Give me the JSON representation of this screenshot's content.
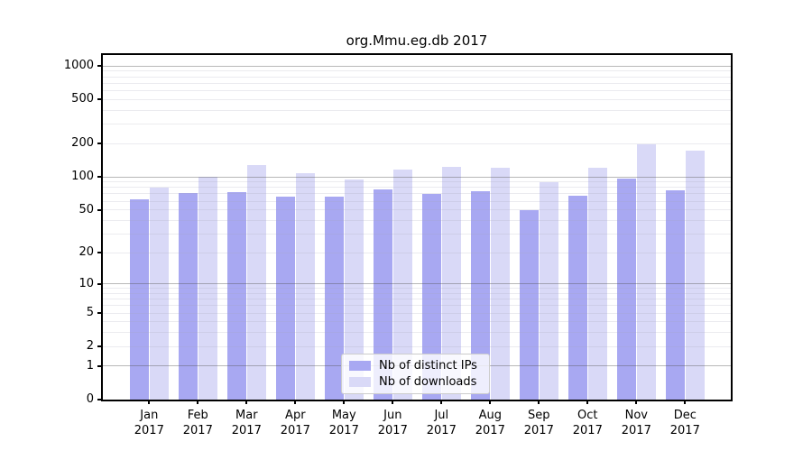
{
  "chart_data": {
    "type": "bar",
    "title": "org.Mmu.eg.db 2017",
    "categories": [
      "Jan 2017",
      "Feb 2017",
      "Mar 2017",
      "Apr 2017",
      "May 2017",
      "Jun 2017",
      "Jul 2017",
      "Aug 2017",
      "Sep 2017",
      "Oct 2017",
      "Nov 2017",
      "Dec 2017"
    ],
    "series": [
      {
        "name": "Nb of distinct IPs",
        "color": "#a8a8f2",
        "values": [
          62,
          71,
          73,
          66,
          66,
          77,
          70,
          74,
          50,
          67,
          96,
          76
        ]
      },
      {
        "name": "Nb of downloads",
        "color": "#d9d9f7",
        "values": [
          80,
          100,
          128,
          108,
          95,
          116,
          124,
          120,
          89,
          121,
          198,
          173
        ]
      }
    ],
    "xlabel": "",
    "ylabel": "",
    "y_scale": "log10(value+1)",
    "y_ticks": [
      0,
      1,
      2,
      5,
      10,
      20,
      50,
      100,
      200,
      500,
      1000
    ],
    "y_major_gridlines": [
      1,
      10,
      100,
      1000
    ],
    "y_minor_gridlines": [
      2,
      3,
      4,
      5,
      6,
      7,
      8,
      9,
      20,
      30,
      40,
      50,
      60,
      70,
      80,
      90,
      200,
      300,
      400,
      500,
      600,
      700,
      800,
      900
    ],
    "ylim": [
      0,
      1260
    ],
    "grid": true,
    "legend_position": "lower center"
  },
  "colors": {
    "bar_distinct_ips": "#a8a8f2",
    "bar_downloads": "#d9d9f7",
    "spine": "#000000",
    "legend_border": "#cccccc"
  }
}
